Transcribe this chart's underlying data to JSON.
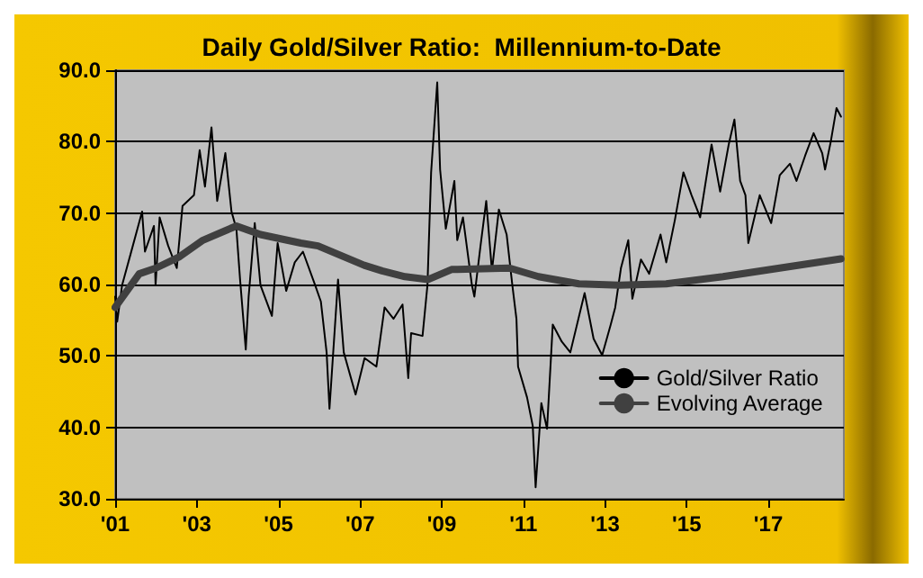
{
  "chart_data": {
    "type": "line",
    "title": "Daily Gold/Silver Ratio:  Millennium-to-Date",
    "series": [
      {
        "name": "Gold/Silver Ratio",
        "color": "#000000",
        "x": [
          2001.0,
          2001.05,
          2001.17,
          2001.38,
          2001.66,
          2001.73,
          2001.95,
          2001.99,
          2002.09,
          2002.3,
          2002.51,
          2002.65,
          2002.93,
          2003.07,
          2003.2,
          2003.36,
          2003.5,
          2003.7,
          2003.85,
          2003.97,
          2004.06,
          2004.2,
          2004.27,
          2004.42,
          2004.56,
          2004.84,
          2004.98,
          2005.19,
          2005.4,
          2005.6,
          2005.9,
          2006.04,
          2006.18,
          2006.25,
          2006.46,
          2006.6,
          2006.89,
          2007.11,
          2007.4,
          2007.6,
          2007.82,
          2008.04,
          2008.18,
          2008.25,
          2008.53,
          2008.65,
          2008.74,
          2008.89,
          2008.96,
          2009.1,
          2009.31,
          2009.38,
          2009.52,
          2009.74,
          2009.8,
          2009.95,
          2010.09,
          2010.23,
          2010.4,
          2010.59,
          2010.73,
          2010.83,
          2010.87,
          2011.09,
          2011.23,
          2011.3,
          2011.44,
          2011.58,
          2011.72,
          2011.94,
          2012.15,
          2012.5,
          2012.72,
          2012.93,
          2013.14,
          2013.25,
          2013.39,
          2013.57,
          2013.67,
          2013.88,
          2014.08,
          2014.36,
          2014.5,
          2014.71,
          2014.92,
          2015.12,
          2015.33,
          2015.61,
          2015.82,
          2016.03,
          2016.17,
          2016.31,
          2016.44,
          2016.51,
          2016.79,
          2017.07,
          2017.28,
          2017.53,
          2017.69,
          2017.9,
          2018.11,
          2018.32,
          2018.39,
          2018.53,
          2018.67,
          2018.78
        ],
        "values": [
          58.3,
          54.8,
          59.9,
          64.3,
          70.2,
          64.6,
          68.2,
          59.9,
          69.4,
          65.4,
          62.3,
          71.0,
          72.5,
          78.8,
          73.7,
          82.0,
          71.7,
          78.4,
          70.2,
          67.8,
          60.7,
          50.9,
          58.3,
          68.6,
          59.9,
          55.6,
          65.8,
          59.1,
          63.1,
          64.6,
          59.9,
          57.6,
          50.5,
          42.6,
          60.7,
          50.5,
          44.6,
          49.7,
          48.5,
          56.8,
          55.2,
          57.2,
          46.9,
          53.2,
          52.8,
          59.9,
          75.7,
          88.3,
          76.1,
          67.8,
          74.5,
          66.2,
          69.4,
          59.9,
          58.3,
          65.4,
          71.7,
          61.9,
          70.5,
          67.0,
          59.9,
          55.2,
          48.5,
          44.2,
          40.2,
          31.6,
          43.4,
          39.8,
          54.4,
          52.0,
          50.5,
          58.8,
          52.4,
          50.1,
          54.4,
          56.8,
          62.3,
          66.2,
          58.0,
          63.5,
          61.5,
          67.0,
          63.1,
          69.0,
          75.7,
          72.5,
          69.4,
          79.6,
          73.0,
          79.6,
          83.1,
          74.5,
          72.5,
          65.8,
          72.5,
          68.6,
          75.3,
          76.9,
          74.5,
          78.0,
          81.2,
          78.4,
          76.1,
          80.0,
          84.7,
          83.5
        ]
      },
      {
        "name": "Evolving Average",
        "color": "#404040",
        "x": [
          2001.0,
          2001.59,
          2002.0,
          2002.58,
          2003.15,
          2003.97,
          2004.56,
          2005.55,
          2005.97,
          2007.1,
          2007.54,
          2008.1,
          2008.67,
          2009.24,
          2010.66,
          2011.37,
          2012.36,
          2013.35,
          2014.5,
          2015.89,
          2017.28,
          2018.78
        ],
        "values": [
          56.8,
          61.5,
          62.3,
          63.9,
          66.2,
          68.2,
          67.0,
          65.8,
          65.4,
          62.7,
          61.9,
          61.1,
          60.7,
          62.1,
          62.3,
          61.1,
          60.1,
          59.9,
          60.1,
          61.1,
          62.3,
          63.6
        ]
      }
    ],
    "xlim": [
      2001,
      2018.85
    ],
    "xticks": [
      {
        "value": 2001,
        "label": "'01"
      },
      {
        "value": 2003,
        "label": "'03"
      },
      {
        "value": 2005,
        "label": "'05"
      },
      {
        "value": 2007,
        "label": "'07"
      },
      {
        "value": 2009,
        "label": "'09"
      },
      {
        "value": 2011,
        "label": "'11"
      },
      {
        "value": 2013,
        "label": "'13"
      },
      {
        "value": 2015,
        "label": "'15"
      },
      {
        "value": 2017,
        "label": "'17"
      }
    ],
    "ylim": [
      30,
      90
    ],
    "yticks": [
      {
        "value": 30,
        "label": "30.0"
      },
      {
        "value": 40,
        "label": "40.0"
      },
      {
        "value": 50,
        "label": "50.0"
      },
      {
        "value": 60,
        "label": "60.0"
      },
      {
        "value": 70,
        "label": "70.0"
      },
      {
        "value": 80,
        "label": "80.0"
      },
      {
        "value": 90,
        "label": "90.0"
      }
    ],
    "grid": "y",
    "legend": "bottom right",
    "marker": "none",
    "line_style": "solid"
  }
}
